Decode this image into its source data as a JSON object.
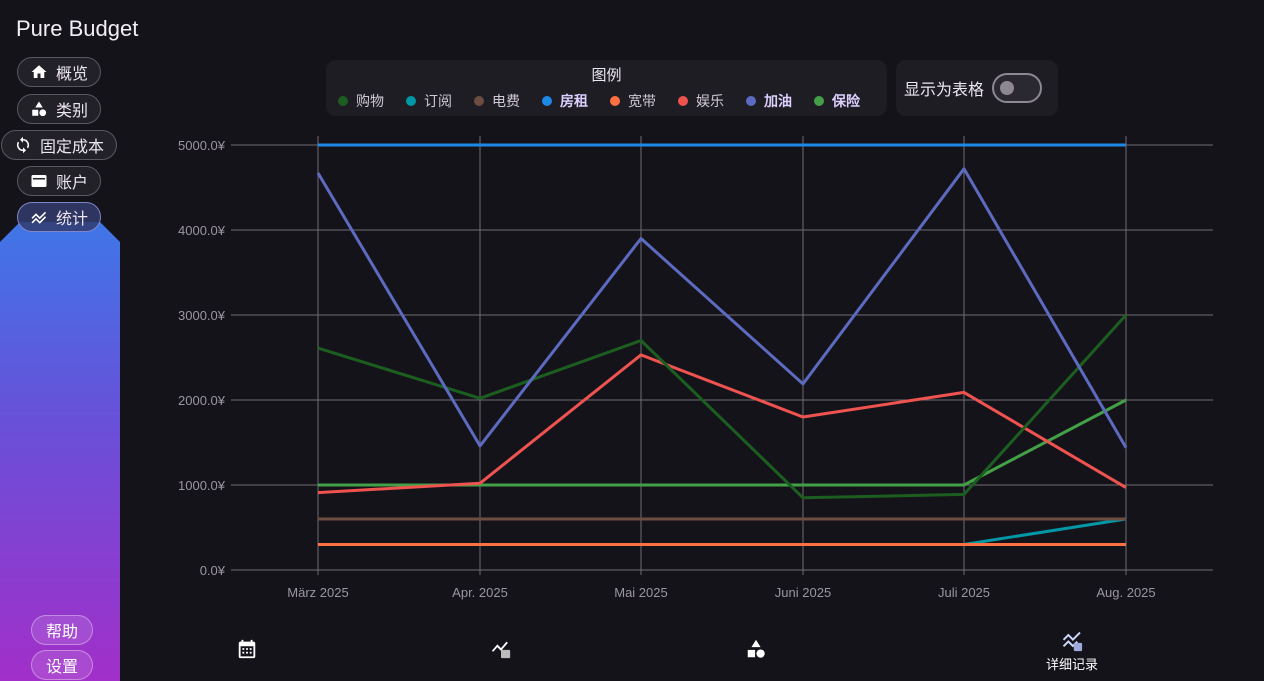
{
  "app": {
    "title": "Pure Budget"
  },
  "sidebar": {
    "items": [
      {
        "label": "概览",
        "icon": "home-icon"
      },
      {
        "label": "类别",
        "icon": "shapes-icon"
      },
      {
        "label": "固定成本",
        "icon": "refresh-icon"
      },
      {
        "label": "账户",
        "icon": "wallet-icon"
      },
      {
        "label": "统计",
        "icon": "trend-icon",
        "active": true
      }
    ],
    "footer": [
      {
        "label": "帮助"
      },
      {
        "label": "设置"
      }
    ]
  },
  "legend": {
    "title": "图例",
    "items": [
      {
        "label": "购物",
        "color": "#1b5e20",
        "bold": false
      },
      {
        "label": "订阅",
        "color": "#0097a7",
        "bold": false
      },
      {
        "label": "电费",
        "color": "#6d4c41",
        "bold": false
      },
      {
        "label": "房租",
        "color": "#1e88e5",
        "bold": true
      },
      {
        "label": "宽带",
        "color": "#ff7043",
        "bold": false
      },
      {
        "label": "娱乐",
        "color": "#ef5350",
        "bold": false
      },
      {
        "label": "加油",
        "color": "#5c6bc0",
        "bold": true
      },
      {
        "label": "保险",
        "color": "#43a047",
        "bold": true
      }
    ]
  },
  "table_toggle": {
    "label": "显示为表格",
    "on": false
  },
  "bottom_nav": [
    {
      "icon": "calendar-icon",
      "label": ""
    },
    {
      "icon": "chart-table-icon",
      "label": ""
    },
    {
      "icon": "shapes-icon",
      "label": ""
    },
    {
      "icon": "detail-trend-icon",
      "label": "详细记录",
      "active": true
    }
  ],
  "chart_data": {
    "type": "line",
    "categories": [
      "März 2025",
      "Apr. 2025",
      "Mai 2025",
      "Juni 2025",
      "Juli 2025",
      "Aug. 2025"
    ],
    "ylim": [
      0,
      5000
    ],
    "y_ticks": [
      "0.0¥",
      "1000.0¥",
      "2000.0¥",
      "3000.0¥",
      "4000.0¥",
      "5000.0¥"
    ],
    "grid": true,
    "series": [
      {
        "name": "房租",
        "color": "#1e88e5",
        "values": [
          5000,
          5000,
          5000,
          5000,
          5000,
          5000
        ]
      },
      {
        "name": "加油",
        "color": "#5c6bc0",
        "values": [
          4670,
          1460,
          3900,
          2190,
          4720,
          1440
        ]
      },
      {
        "name": "购物",
        "color": "#1b5e20",
        "values": [
          2610,
          2020,
          2700,
          850,
          890,
          3000
        ]
      },
      {
        "name": "娱乐",
        "color": "#ef5350",
        "values": [
          910,
          1020,
          2530,
          1800,
          2090,
          970
        ]
      },
      {
        "name": "保险",
        "color": "#43a047",
        "values": [
          1000,
          1000,
          1000,
          1000,
          1000,
          2000
        ]
      },
      {
        "name": "电费",
        "color": "#6d4c41",
        "values": [
          600,
          600,
          600,
          600,
          600,
          600
        ]
      },
      {
        "name": "宽带",
        "color": "#ff7043",
        "values": [
          300,
          300,
          300,
          300,
          300,
          300
        ]
      },
      {
        "name": "订阅",
        "color": "#0097a7",
        "values": [
          300,
          300,
          300,
          300,
          300,
          600
        ]
      }
    ]
  }
}
